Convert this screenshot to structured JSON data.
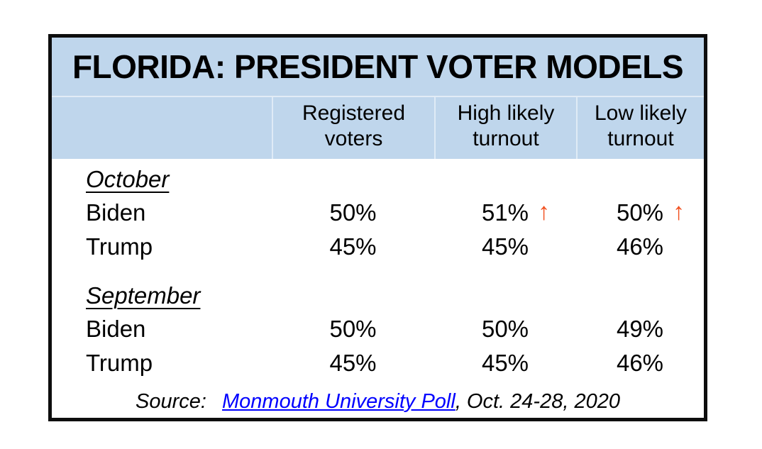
{
  "colors": {
    "header_bg": "#BFD6EC",
    "border": "#0e0e0e",
    "arrow": "#F2501F",
    "link": "#0000FF",
    "text": "#000000"
  },
  "icons": {
    "up_arrow": "↑"
  },
  "chart_data": {
    "type": "table",
    "title": "FLORIDA: PRESIDENT VOTER MODELS",
    "columns": [
      "Registered voters",
      "High likely turnout",
      "Low likely turnout"
    ],
    "groups": [
      {
        "label": "October",
        "rows": [
          {
            "name": "Biden",
            "values": [
              "50%",
              "51%",
              "50%"
            ],
            "trend": [
              null,
              "up",
              "up"
            ]
          },
          {
            "name": "Trump",
            "values": [
              "45%",
              "45%",
              "46%"
            ],
            "trend": [
              null,
              null,
              null
            ]
          }
        ]
      },
      {
        "label": "September",
        "rows": [
          {
            "name": "Biden",
            "values": [
              "50%",
              "50%",
              "49%"
            ],
            "trend": [
              null,
              null,
              null
            ]
          },
          {
            "name": "Trump",
            "values": [
              "45%",
              "45%",
              "46%"
            ],
            "trend": [
              null,
              null,
              null
            ]
          }
        ]
      }
    ],
    "source": {
      "label": "Source: ",
      "link_text": "Monmouth University Poll",
      "suffix": ", Oct. 24-28, 2020"
    }
  }
}
